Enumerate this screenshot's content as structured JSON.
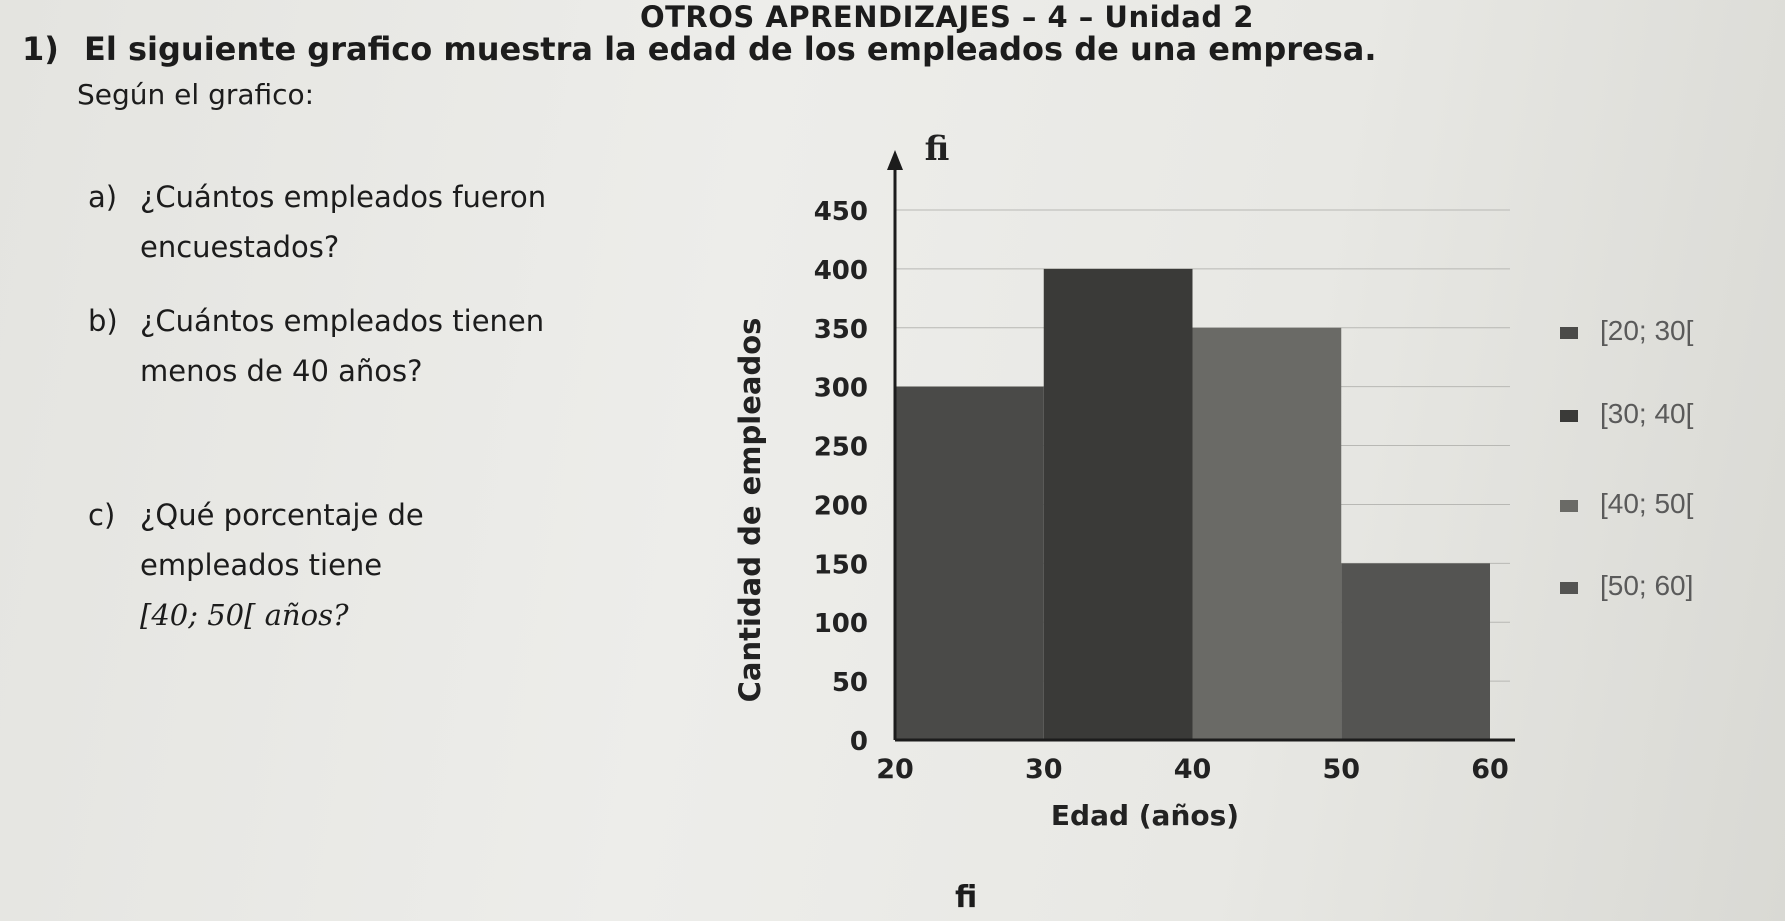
{
  "header": {
    "title": "OTROS APRENDIZAJES – 4 – Unidad 2"
  },
  "problem": {
    "number": "1)",
    "statement": "El siguiente grafico muestra la edad de los empleados de una empresa.",
    "subtitle": "Según el grafico:"
  },
  "questions": [
    {
      "letter": "a)",
      "text": "¿Cuántos empleados fueron encuestados?"
    },
    {
      "letter": "b)",
      "text": "¿Cuántos empleados tienen menos de 40 años?"
    },
    {
      "letter": "c)",
      "text": "¿Qué porcentaje de empleados tiene",
      "interval": "[40; 50[ años?"
    }
  ],
  "footer": {
    "fragment": "fi"
  },
  "chart_data": {
    "type": "bar",
    "histogram": true,
    "categories": [
      "[20; 30[",
      "[30; 40[",
      "[40; 50[",
      "[50; 60]"
    ],
    "bin_edges": [
      20,
      30,
      40,
      50,
      60
    ],
    "values": [
      300,
      400,
      350,
      150
    ],
    "ylabel": "Cantidad de empleados",
    "ylabel_top": "fi",
    "xlabel": "Edad (años)",
    "yticks": [
      0,
      50,
      100,
      150,
      200,
      250,
      300,
      350,
      400,
      450
    ],
    "xticks": [
      20,
      30,
      40,
      50,
      60
    ],
    "ylim": [
      0,
      450
    ],
    "xlim": [
      20,
      60
    ],
    "grid": true,
    "legend": [
      "[20; 30[",
      "[30; 40[",
      "[40; 50[",
      "[50; 60]"
    ],
    "legend_position": "right",
    "colors": [
      "#4a4a48",
      "#3a3a38",
      "#6a6a66",
      "#545452"
    ]
  }
}
